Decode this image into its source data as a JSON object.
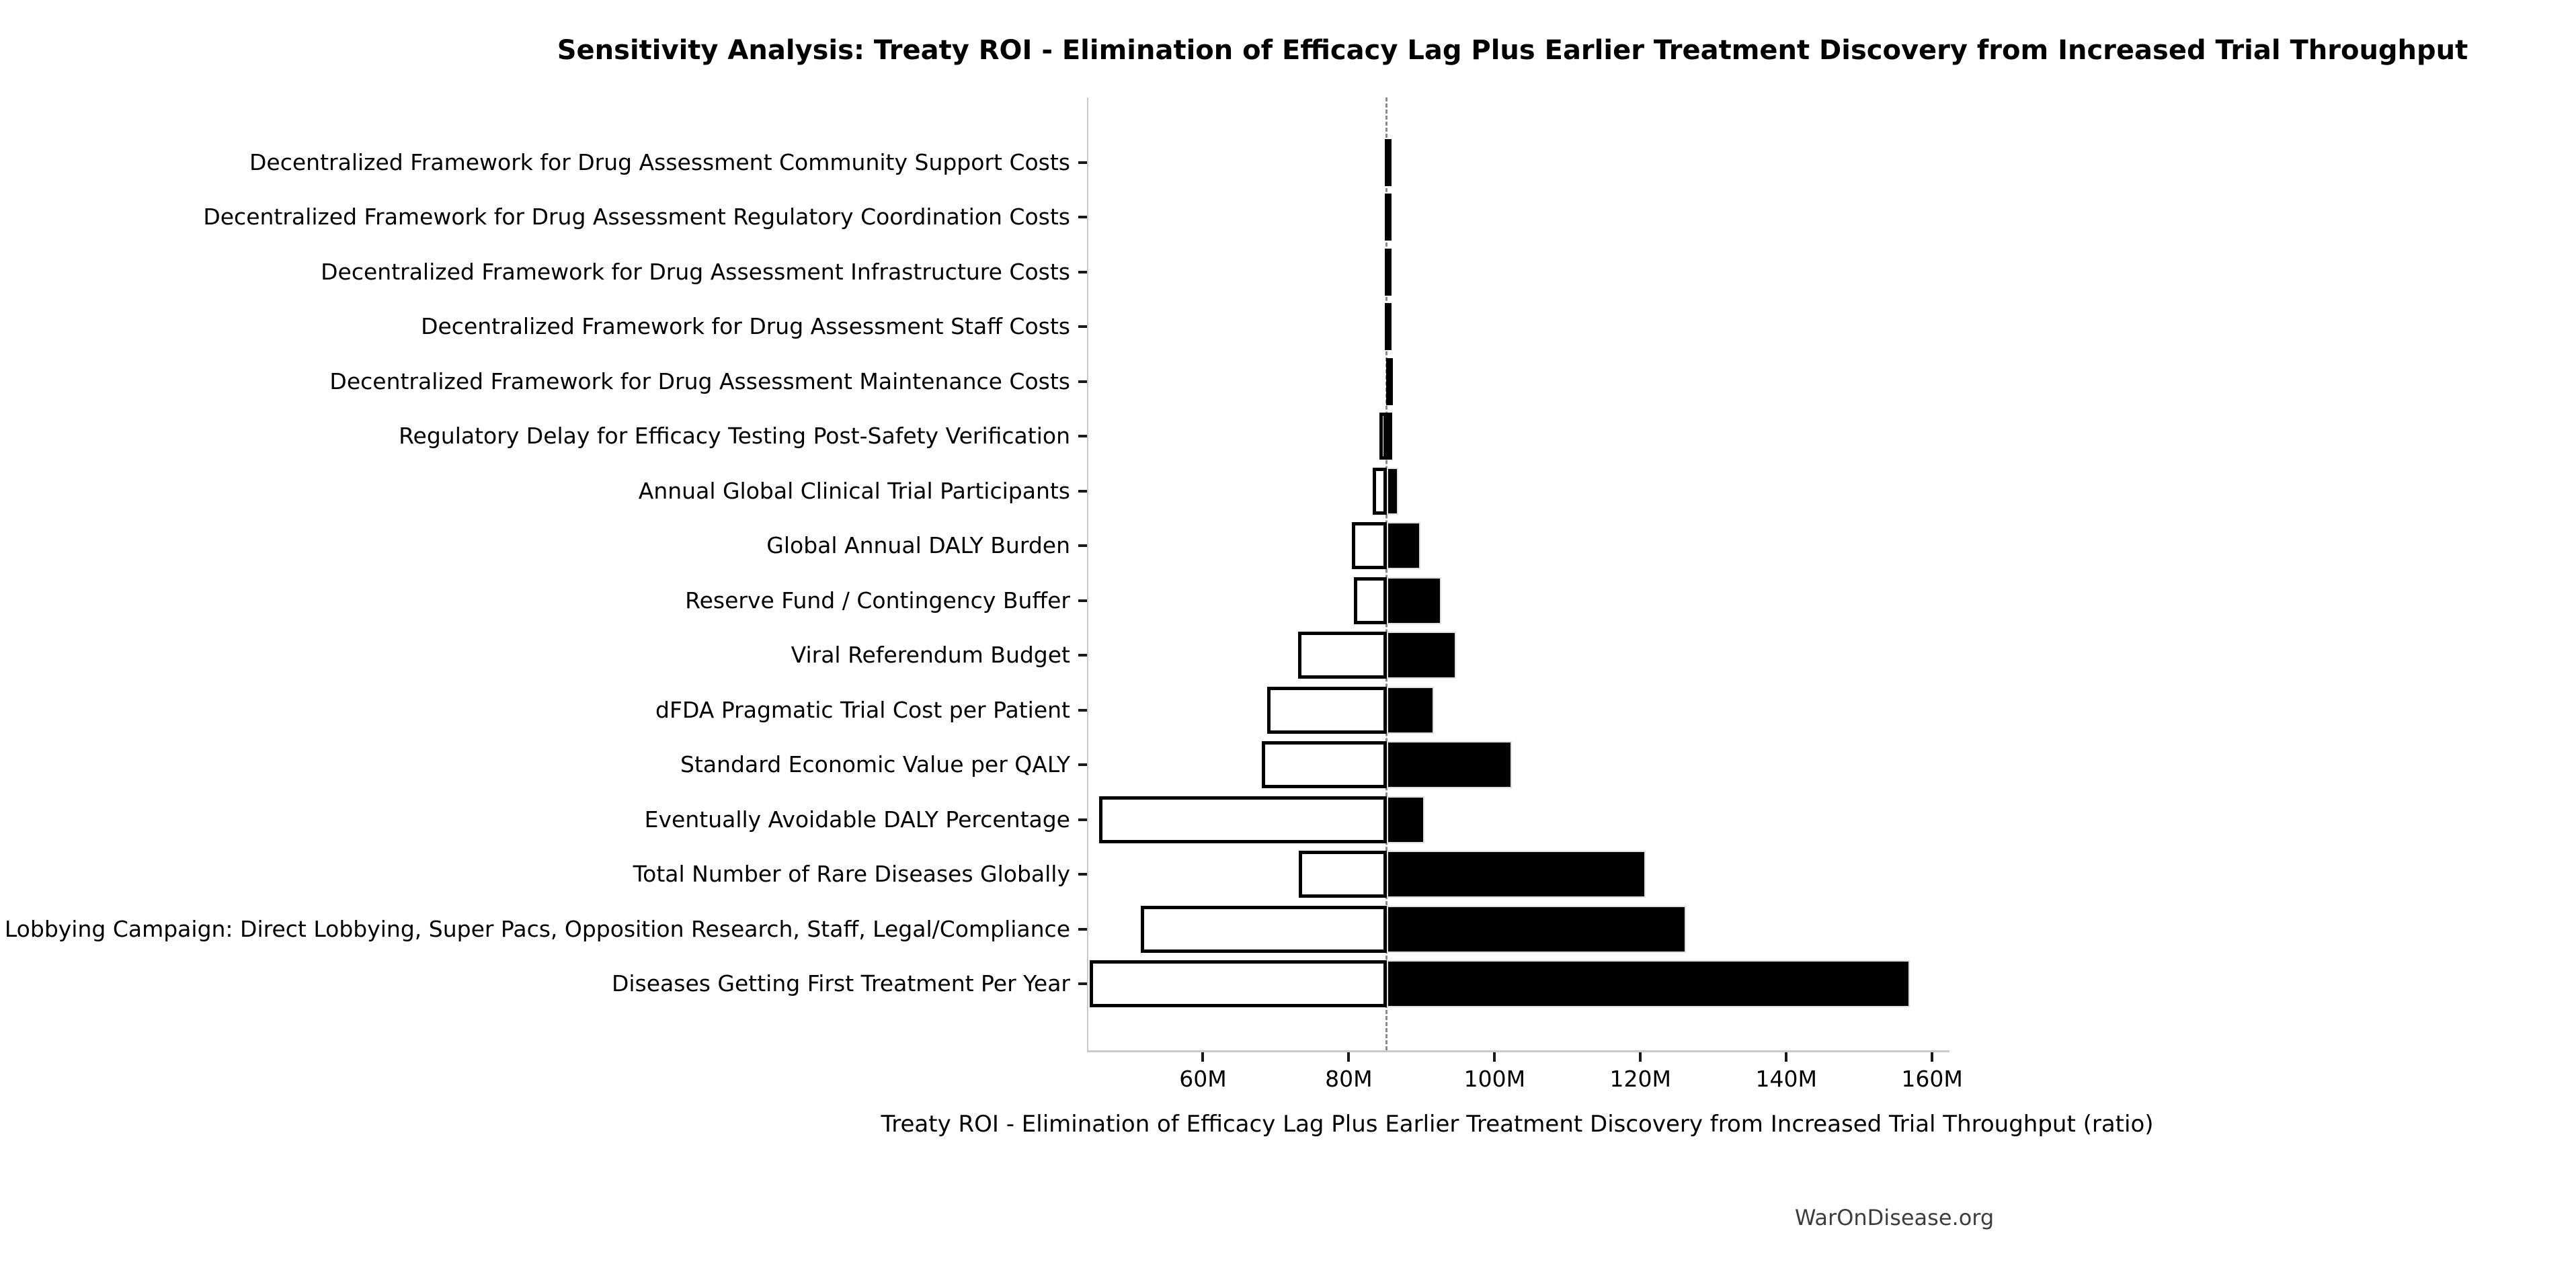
{
  "page": {
    "watermark": "WarOnDisease.org"
  },
  "chart_data": {
    "type": "bar",
    "variant": "tornado-sensitivity",
    "title": "Sensitivity Analysis: Treaty ROI - Elimination of Efficacy Lag Plus Earlier Treatment Discovery from Increased Trial Throughput",
    "xlabel": "Treaty ROI - Elimination of Efficacy Lag Plus Earlier Treatment Discovery from Increased Trial Throughput (ratio)",
    "x_unit": "M",
    "xlim": [
      44.1,
      162.2
    ],
    "x_ticks": [
      60,
      80,
      100,
      120,
      140,
      160
    ],
    "x_tick_labels": [
      "60M",
      "80M",
      "100M",
      "120M",
      "140M",
      "160M"
    ],
    "baseline_value": 85.0,
    "grid": false,
    "legend": null,
    "orientation": "horizontal",
    "bar_colors": {
      "low_fill": "#ffffff",
      "low_edge": "#000000",
      "high_fill": "#000000",
      "high_edge": "#e0e0e0",
      "baseline": "#8a8a8a",
      "spine": "#c9c9c9"
    },
    "rows": [
      {
        "label": "Decentralized Framework for Drug Assessment Community Support Costs",
        "low": 84.8,
        "high": 85.4
      },
      {
        "label": "Decentralized Framework for Drug Assessment Regulatory Coordination Costs",
        "low": 84.8,
        "high": 85.4
      },
      {
        "label": "Decentralized Framework for Drug Assessment Infrastructure Costs",
        "low": 84.8,
        "high": 85.4
      },
      {
        "label": "Decentralized Framework for Drug Assessment Staff Costs",
        "low": 84.8,
        "high": 85.4
      },
      {
        "label": "Decentralized Framework for Drug Assessment Maintenance Costs",
        "low": 84.9,
        "high": 85.3
      },
      {
        "label": "Regulatory Delay for Efficacy Testing Post-Safety Verification",
        "low": 84.0,
        "high": 85.8
      },
      {
        "label": "Annual Global Clinical Trial Participants",
        "low": 83.1,
        "high": 86.6
      },
      {
        "label": "Global Annual DALY Burden",
        "low": 80.2,
        "high": 89.6
      },
      {
        "label": "Reserve Fund / Contingency Buffer",
        "low": 80.5,
        "high": 92.5
      },
      {
        "label": "Viral Referendum Budget",
        "low": 72.9,
        "high": 94.5
      },
      {
        "label": "dFDA Pragmatic Trial Cost per Patient",
        "low": 68.6,
        "high": 91.5
      },
      {
        "label": "Standard Economic Value per QALY",
        "low": 67.9,
        "high": 102.2
      },
      {
        "label": "Eventually Avoidable DALY Percentage",
        "low": 45.6,
        "high": 90.2
      },
      {
        "label": "Total Number of Rare Diseases Globally",
        "low": 73.0,
        "high": 120.5
      },
      {
        "label": "Political Lobbying Campaign: Direct Lobbying, Super Pacs, Opposition Research, Staff, Legal/Compliance",
        "low": 51.3,
        "high": 126.1
      },
      {
        "label": "Diseases Getting First Treatment Per Year",
        "low": 44.3,
        "high": 156.8
      }
    ]
  }
}
